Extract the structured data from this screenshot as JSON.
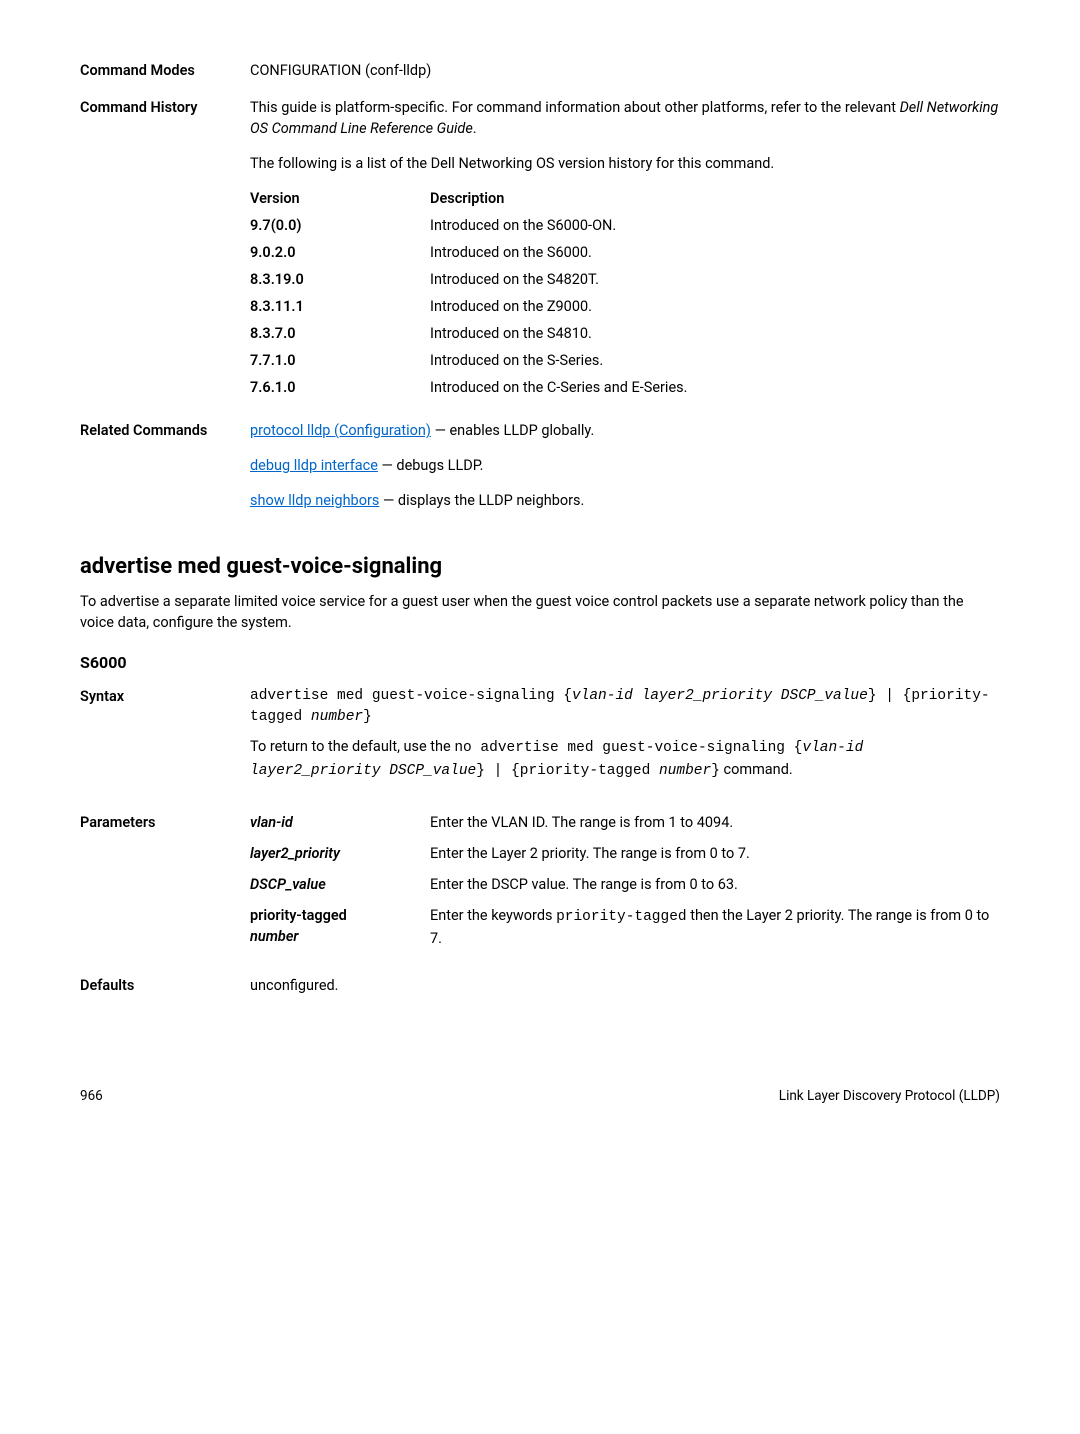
{
  "top": {
    "cmd_modes_label": "Command Modes",
    "cmd_modes_value": "CONFIGURATION (conf-lldp)",
    "cmd_history_label": "Command History",
    "cmd_history_p1_a": "This guide is platform-specific. For command information about other platforms, refer to the relevant ",
    "cmd_history_p1_b": "Dell Networking OS Command Line Reference Guide",
    "cmd_history_p1_c": ".",
    "cmd_history_p2": "The following is a list of the Dell Networking OS version history for this command.",
    "versions_header_left": "Version",
    "versions_header_right": "Description",
    "versions": [
      {
        "ver": "9.7(0.0)",
        "desc": "Introduced on the S6000-ON."
      },
      {
        "ver": "9.0.2.0",
        "desc": "Introduced on the S6000."
      },
      {
        "ver": "8.3.19.0",
        "desc": "Introduced on the S4820T."
      },
      {
        "ver": "8.3.11.1",
        "desc": "Introduced on the Z9000."
      },
      {
        "ver": "8.3.7.0",
        "desc": "Introduced on the S4810."
      },
      {
        "ver": "7.7.1.0",
        "desc": "Introduced on the S-Series."
      },
      {
        "ver": "7.6.1.0",
        "desc": "Introduced on the C-Series and E-Series."
      }
    ],
    "related_label": "Related Commands",
    "related_1_link": "protocol lldp (Configuration)",
    "related_1_rest": " — enables LLDP globally.",
    "related_2_link": "debug lldp interface",
    "related_2_rest": " — debugs LLDP.",
    "related_3_link": "show lldp neighbors",
    "related_3_rest": " — displays the LLDP neighbors."
  },
  "section": {
    "title": "advertise med guest-voice-signaling",
    "desc": "To advertise a separate limited voice service for a guest user when the guest voice control packets use a separate network policy than the voice data, configure the system.",
    "model": "S6000",
    "syntax_label": "Syntax",
    "syntax_line_a": "advertise med guest-voice-signaling {",
    "syntax_line_b": "vlan-id layer2_priority DSCP_value",
    "syntax_line_c": "} | {priority-tagged ",
    "syntax_line_d": "number",
    "syntax_line_e": "}",
    "syntax_p2_a": "To return to the default, use the ",
    "syntax_p2_b": "no advertise med guest-voice-signaling {",
    "syntax_p2_c": "vlan-id layer2_priority DSCP_value",
    "syntax_p2_d": "} | {priority-tagged ",
    "syntax_p2_e": "number",
    "syntax_p2_f": "}",
    "syntax_p2_g": " command.",
    "params_label": "Parameters",
    "params": [
      {
        "key": "vlan-id",
        "val": "Enter the VLAN ID. The range is from 1 to 4094.",
        "italic_key": true
      },
      {
        "key": "layer2_priority",
        "val": "Enter the Layer 2 priority. The range is from 0 to 7.",
        "italic_key": true
      },
      {
        "key": "DSCP_value",
        "val": "Enter the DSCP value. The range is from 0 to 63.",
        "italic_key": true
      }
    ],
    "param_pt_key_a": "priority-tagged",
    "param_pt_key_b": "number",
    "param_pt_val_a": "Enter the keywords ",
    "param_pt_val_b": "priority-tagged",
    "param_pt_val_c": " then the Layer 2 priority. The range is from 0 to 7.",
    "defaults_label": "Defaults",
    "defaults_value": "unconfigured."
  },
  "footer": {
    "page": "966",
    "right": "Link Layer Discovery Protocol (LLDP)"
  }
}
